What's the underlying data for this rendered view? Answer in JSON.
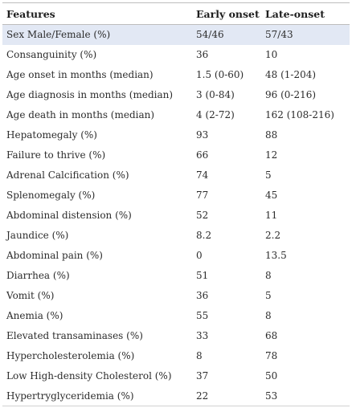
{
  "headers": [
    "Features",
    "Early onset",
    "Late-onset"
  ],
  "rows": [
    {
      "feature": "Sex Male/Female (%)",
      "early": "54/46",
      "late": "57/43"
    },
    {
      "feature": "Consanguinity (%)",
      "early": "36",
      "late": "10"
    },
    {
      "feature": "Age onset in months (median)",
      "early": "1.5 (0-60)",
      "late": "48 (1-204)"
    },
    {
      "feature": "Age diagnosis in months (median)",
      "early": "3 (0-84)",
      "late": "96 (0-216)"
    },
    {
      "feature": "Age death in months (median)",
      "early": "4 (2-72)",
      "late": "162 (108-216)"
    },
    {
      "feature": "Hepatomegaly (%)",
      "early": "93",
      "late": "88"
    },
    {
      "feature": "Failure to thrive (%)",
      "early": "66",
      "late": "12"
    },
    {
      "feature": "Adrenal Calcification (%)",
      "early": "74",
      "late": "5"
    },
    {
      "feature": "Splenomegaly (%)",
      "early": "77",
      "late": "45"
    },
    {
      "feature": "Abdominal distension (%)",
      "early": "52",
      "late": "11"
    },
    {
      "feature": "Jaundice (%)",
      "early": "8.2",
      "late": "2.2"
    },
    {
      "feature": "Abdominal pain (%)",
      "early": "0",
      "late": "13.5"
    },
    {
      "feature": "Diarrhea (%)",
      "early": "51",
      "late": "8"
    },
    {
      "feature": "Vomit (%)",
      "early": "36",
      "late": "5"
    },
    {
      "feature": "Anemia (%)",
      "early": "55",
      "late": "8"
    },
    {
      "feature": "Elevated transaminases (%)",
      "early": "33",
      "late": "68"
    },
    {
      "feature": "Hypercholesterolemia (%)",
      "early": "8",
      "late": "78"
    },
    {
      "feature": "Low High-density Cholesterol (%)",
      "early": "37",
      "late": "50"
    },
    {
      "feature": "Hypertryglyceridemia (%)",
      "early": "22",
      "late": "53"
    }
  ],
  "colors": {
    "highlight_row": "#e2e8f4",
    "rule": "#bdbdbd",
    "text": "#2c2c2c"
  }
}
